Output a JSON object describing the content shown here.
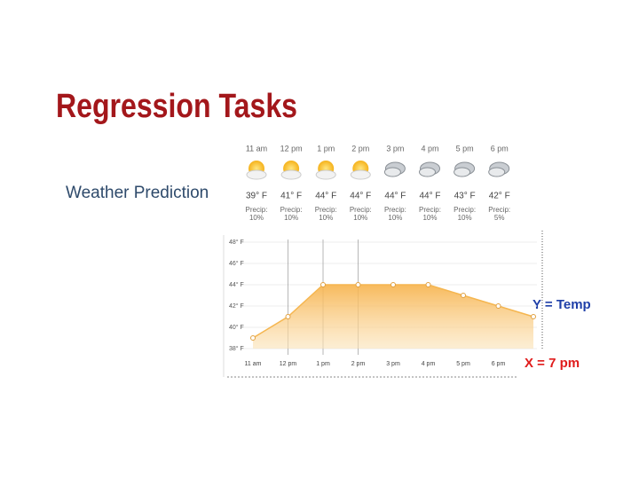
{
  "slide": {
    "title": "Regression Tasks",
    "subtitle": "Weather Prediction",
    "forecast": [
      {
        "time": "11 am",
        "temp": "39° F",
        "precip_label": "Precip:",
        "precip": "10%"
      },
      {
        "time": "12 pm",
        "temp": "41° F",
        "precip_label": "Precip:",
        "precip": "10%"
      },
      {
        "time": "1 pm",
        "temp": "44° F",
        "precip_label": "Precip:",
        "precip": "10%"
      },
      {
        "time": "2 pm",
        "temp": "44° F",
        "precip_label": "Precip:",
        "precip": "10%"
      },
      {
        "time": "3 pm",
        "temp": "44° F",
        "precip_label": "Precip:",
        "precip": "10%"
      },
      {
        "time": "4 pm",
        "temp": "44° F",
        "precip_label": "Precip:",
        "precip": "10%"
      },
      {
        "time": "5 pm",
        "temp": "43° F",
        "precip_label": "Precip:",
        "precip": "10%"
      },
      {
        "time": "6 pm",
        "temp": "42° F",
        "precip_label": "Precip:",
        "precip": "5%"
      }
    ]
  },
  "chart_data": {
    "type": "area",
    "categories": [
      "11 am",
      "12 pm",
      "1 pm",
      "2 pm",
      "3 pm",
      "4 pm",
      "5 pm",
      "6 pm",
      null
    ],
    "values": [
      39,
      41,
      44,
      44,
      44,
      44,
      43,
      42,
      41
    ],
    "color": "#f5b650",
    "ylim": [
      38,
      48
    ],
    "yticks": [
      {
        "value": 38,
        "label": "38° F"
      },
      {
        "value": 40,
        "label": "40° F"
      },
      {
        "value": 42,
        "label": "42° F"
      },
      {
        "value": 44,
        "label": "44° F"
      },
      {
        "value": 46,
        "label": "46° F"
      },
      {
        "value": 48,
        "label": "48° F"
      }
    ],
    "annotations": [
      "Y = Temp",
      "X = 7 pm"
    ]
  }
}
